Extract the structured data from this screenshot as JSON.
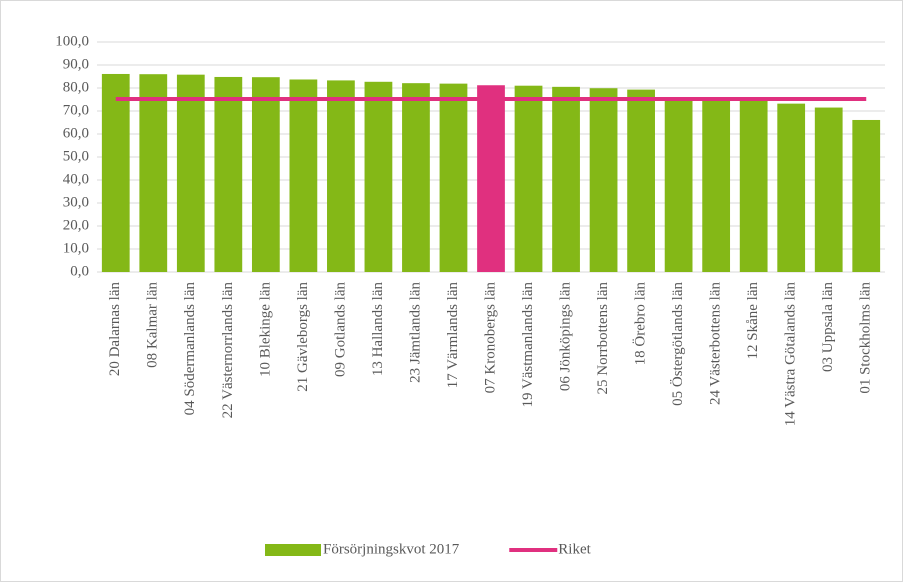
{
  "chart_data": {
    "type": "bar",
    "categories": [
      "20 Dalarnas län",
      "08 Kalmar län",
      "04 Södermanlands län",
      "22 Västernorrlands län",
      "10 Blekinge län",
      "21 Gävleborgs län",
      "09 Gotlands län",
      "13 Hallands län",
      "23 Jämtlands län",
      "17 Värmlands län",
      "07 Kronobergs län",
      "19 Västmanlands län",
      "06 Jönköpings län",
      "25 Norrbottens län",
      "18 Örebro län",
      "05 Östergötlands län",
      "24 Västerbottens län",
      "12 Skåne län",
      "14 Västra Götalands län",
      "03 Uppsala län",
      "01 Stockholms län"
    ],
    "series": [
      {
        "name": "Försörjningskvot 2017",
        "type": "bar",
        "color": "#84b817",
        "colors": [
          "#84b817",
          "#84b817",
          "#84b817",
          "#84b817",
          "#84b817",
          "#84b817",
          "#84b817",
          "#84b817",
          "#84b817",
          "#84b817",
          "#e0307f",
          "#84b817",
          "#84b817",
          "#84b817",
          "#84b817",
          "#84b817",
          "#84b817",
          "#84b817",
          "#84b817",
          "#84b817",
          "#84b817"
        ],
        "values": [
          86.1,
          86.0,
          85.8,
          84.8,
          84.7,
          83.7,
          83.3,
          82.7,
          82.1,
          81.9,
          81.2,
          81.0,
          80.5,
          79.9,
          79.3,
          75.5,
          75.5,
          75.0,
          73.2,
          71.5,
          66.1
        ]
      },
      {
        "name": "Riket",
        "type": "line",
        "color": "#e0307f",
        "values": [
          75.2,
          75.2,
          75.2,
          75.2,
          75.2,
          75.2,
          75.2,
          75.2,
          75.2,
          75.2,
          75.2,
          75.2,
          75.2,
          75.2,
          75.2,
          75.2,
          75.2,
          75.2,
          75.2,
          75.2,
          75.2
        ]
      }
    ],
    "ylim": [
      0,
      100
    ],
    "yticks": [
      {
        "value": 0,
        "label": "0,0"
      },
      {
        "value": 10,
        "label": "10,0"
      },
      {
        "value": 20,
        "label": "20,0"
      },
      {
        "value": 30,
        "label": "30,0"
      },
      {
        "value": 40,
        "label": "40,0"
      },
      {
        "value": 50,
        "label": "50,0"
      },
      {
        "value": 60,
        "label": "60,0"
      },
      {
        "value": 70,
        "label": "70,0"
      },
      {
        "value": 80,
        "label": "80,0"
      },
      {
        "value": 90,
        "label": "90,0"
      },
      {
        "value": 100,
        "label": "100,0"
      }
    ],
    "grid": true,
    "legend": "bottom"
  }
}
